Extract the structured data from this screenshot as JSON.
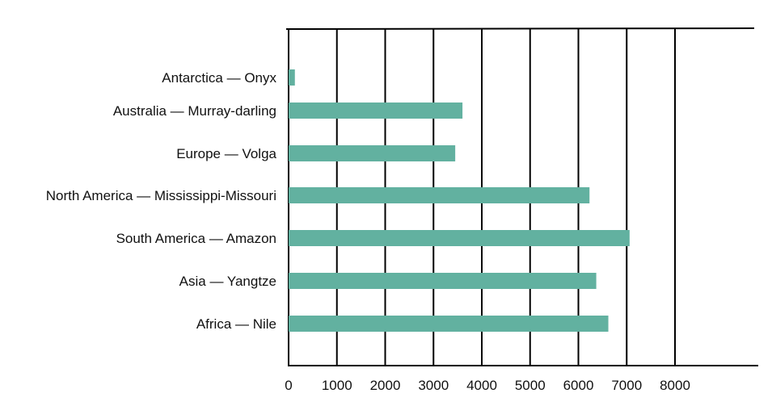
{
  "chart_data": {
    "type": "bar",
    "orientation": "horizontal",
    "categories": [
      "Antarctica — Onyx",
      "Australia — Murray-darling",
      "Europe — Volga",
      "North America — Mississippi-Missouri",
      "South America — Amazon",
      "Asia — Yangtze",
      "Africa — Nile"
    ],
    "values": [
      130,
      3600,
      3450,
      6230,
      7060,
      6370,
      6620
    ],
    "xlim": [
      0,
      8000
    ],
    "xticks": [
      0,
      1000,
      2000,
      3000,
      4000,
      5000,
      6000,
      7000,
      8000
    ],
    "tick_labels": [
      "0",
      "1000",
      "2000",
      "3000",
      "4000",
      "5000",
      "6000",
      "7000",
      "8000"
    ],
    "grid": true,
    "colors": {
      "bar": "#62b1a0",
      "grid": "#000000",
      "text": "#111111"
    }
  }
}
